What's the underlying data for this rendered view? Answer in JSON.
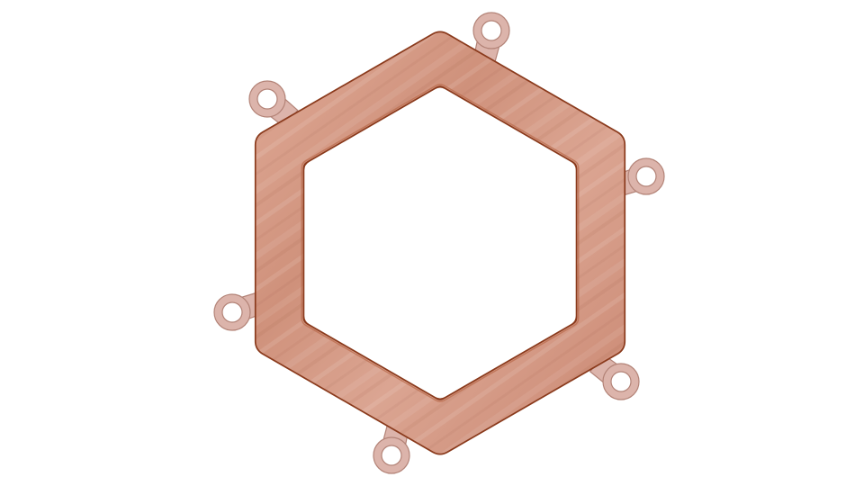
{
  "object": {
    "name": "hexagonal-frame-with-tabs",
    "material": "copper",
    "tab_count": 6
  },
  "colors": {
    "background": "#ffffff",
    "frame_fill": "#d79b87",
    "frame_fill_light": "#e2b0a0",
    "frame_edge": "#8a3a1c",
    "frame_bevel": "#b96a4a",
    "tab_fill": "#dcb4ab",
    "tab_edge": "#b38377"
  }
}
